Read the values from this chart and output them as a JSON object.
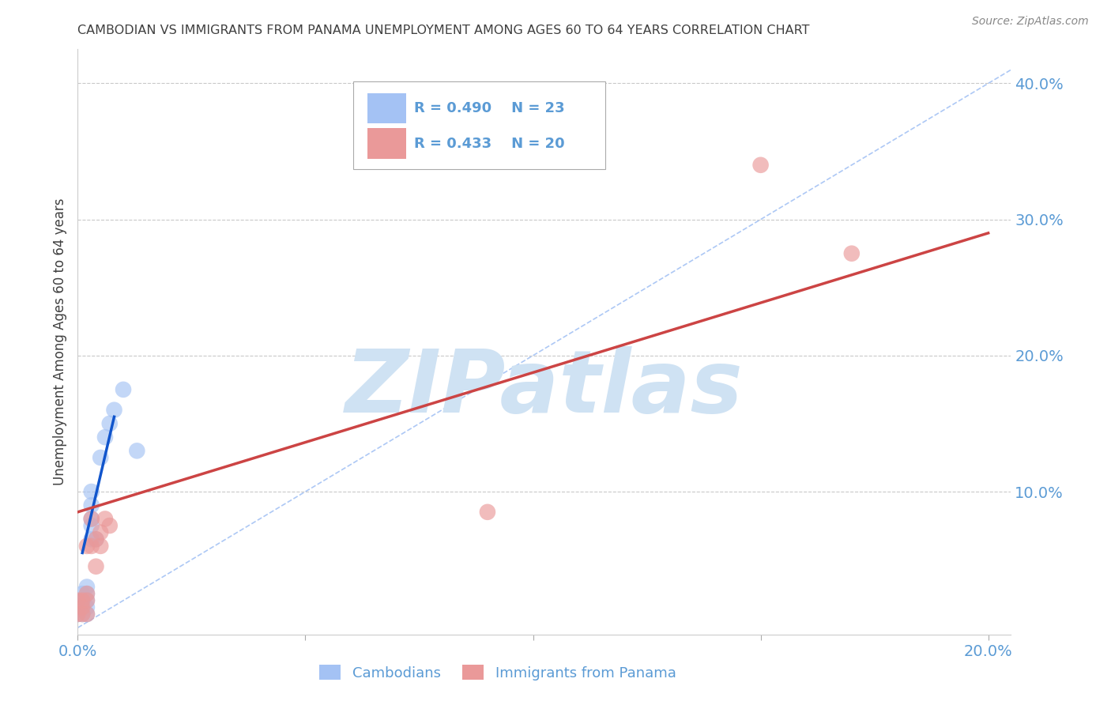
{
  "title": "CAMBODIAN VS IMMIGRANTS FROM PANAMA UNEMPLOYMENT AMONG AGES 60 TO 64 YEARS CORRELATION CHART",
  "source_text": "Source: ZipAtlas.com",
  "ylabel": "Unemployment Among Ages 60 to 64 years",
  "xlim": [
    0.0,
    0.205
  ],
  "ylim": [
    -0.005,
    0.425
  ],
  "xticks": [
    0.0,
    0.05,
    0.1,
    0.15,
    0.2
  ],
  "yticks": [
    0.0,
    0.1,
    0.2,
    0.3,
    0.4
  ],
  "xticklabels": [
    "0.0%",
    "",
    "",
    "",
    "20.0%"
  ],
  "yticklabels": [
    "",
    "10.0%",
    "20.0%",
    "30.0%",
    "40.0%"
  ],
  "cambodian_R": "0.490",
  "cambodian_N": "23",
  "panama_R": "0.433",
  "panama_N": "20",
  "background_color": "#ffffff",
  "title_color": "#404040",
  "axis_label_color": "#404040",
  "tick_color": "#5b9bd5",
  "blue_color": "#a4c2f4",
  "pink_color": "#ea9999",
  "blue_line_color": "#1155cc",
  "pink_line_color": "#cc4444",
  "dashed_line_color": "#a4c2f4",
  "watermark_color": "#cfe2f3",
  "grid_color": "#bbbbbb",
  "cambodian_x": [
    0.0,
    0.0,
    0.001,
    0.001,
    0.001,
    0.001,
    0.002,
    0.002,
    0.002,
    0.002,
    0.002,
    0.003,
    0.003,
    0.003,
    0.003,
    0.003,
    0.004,
    0.005,
    0.006,
    0.007,
    0.008,
    0.01,
    0.013
  ],
  "cambodian_y": [
    0.01,
    0.015,
    0.01,
    0.015,
    0.02,
    0.025,
    0.01,
    0.015,
    0.02,
    0.025,
    0.03,
    0.065,
    0.075,
    0.08,
    0.09,
    0.1,
    0.065,
    0.125,
    0.14,
    0.15,
    0.16,
    0.175,
    0.13
  ],
  "panama_x": [
    0.0,
    0.0,
    0.001,
    0.001,
    0.001,
    0.002,
    0.002,
    0.002,
    0.002,
    0.003,
    0.003,
    0.004,
    0.004,
    0.005,
    0.005,
    0.006,
    0.007,
    0.09,
    0.15,
    0.17
  ],
  "panama_y": [
    0.01,
    0.02,
    0.01,
    0.015,
    0.02,
    0.01,
    0.02,
    0.025,
    0.06,
    0.06,
    0.08,
    0.045,
    0.065,
    0.06,
    0.07,
    0.08,
    0.075,
    0.085,
    0.34,
    0.275
  ],
  "blue_trend_x": [
    0.001,
    0.008
  ],
  "blue_trend_y": [
    0.055,
    0.155
  ],
  "pink_trend_x": [
    0.0,
    0.2
  ],
  "pink_trend_y": [
    0.085,
    0.29
  ],
  "dashed_line_x": [
    0.0,
    0.205
  ],
  "dashed_line_y": [
    0.0,
    0.41
  ]
}
